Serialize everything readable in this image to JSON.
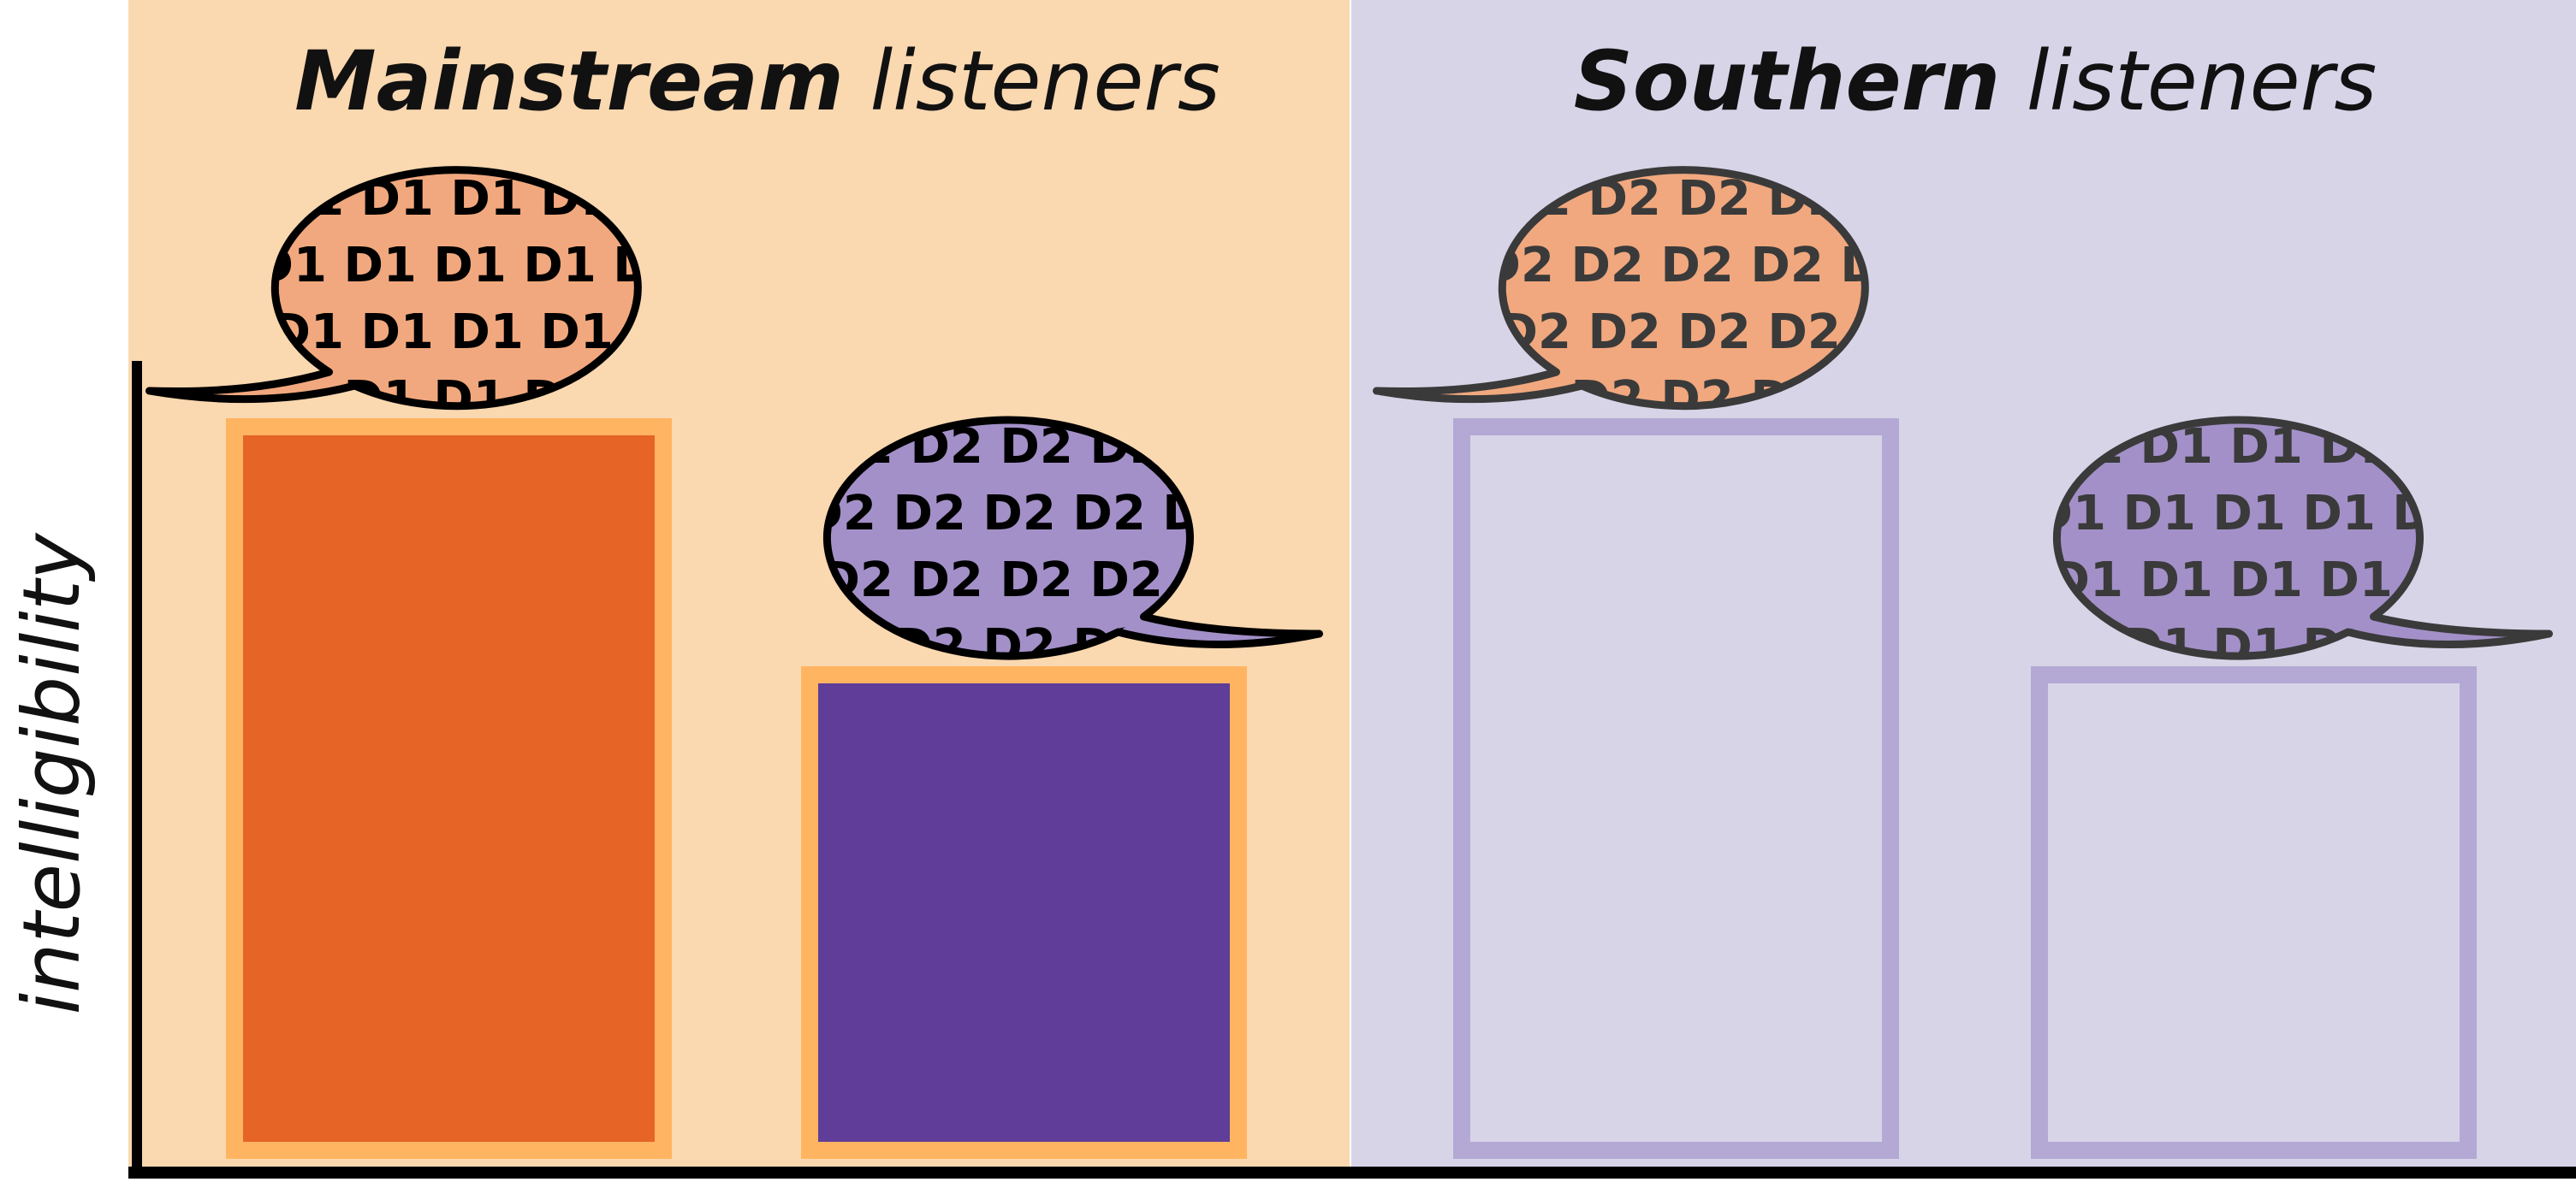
{
  "colors": {
    "panel_mainstream_bg": "#fad8b0",
    "panel_southern_bg": "#d8d4e8",
    "orange_bar_fill": "#e66426",
    "orange_bar_border": "#ffb461",
    "purple_bar_fill": "#5f3d98",
    "outline_bar_border": "#b3a9d4",
    "bubble_orange": "#f1a87e",
    "bubble_purple": "#a390c8",
    "axis": "#000000"
  },
  "y_axis": {
    "label": "intelligibility"
  },
  "panels": [
    {
      "id": "mainstream",
      "title_bold": "Mainstream",
      "title_rest": " listeners",
      "bars": [
        {
          "value": 0.87,
          "style": "filled-orange",
          "bubble_text": "D1 D1 D1 D1 D1",
          "bubble_color": "bubble_orange",
          "tail": "left",
          "bubble_outline": "#000000"
        },
        {
          "value": 0.58,
          "style": "filled-purple",
          "bubble_text": "D2 D2 D2 D2 D2",
          "bubble_color": "bubble_purple",
          "tail": "right",
          "bubble_outline": "#000000"
        }
      ]
    },
    {
      "id": "southern",
      "title_bold": "Southern",
      "title_rest": " listeners",
      "bars": [
        {
          "value": 0.87,
          "style": "outline",
          "bubble_text": "D2 D2 D2 D2 D2",
          "bubble_color": "bubble_orange",
          "tail": "left",
          "bubble_outline": "#3a3a3a"
        },
        {
          "value": 0.58,
          "style": "outline",
          "bubble_text": "D1 D1 D1 D1 D1",
          "bubble_color": "bubble_purple",
          "tail": "right",
          "bubble_outline": "#3a3a3a"
        }
      ]
    }
  ]
}
